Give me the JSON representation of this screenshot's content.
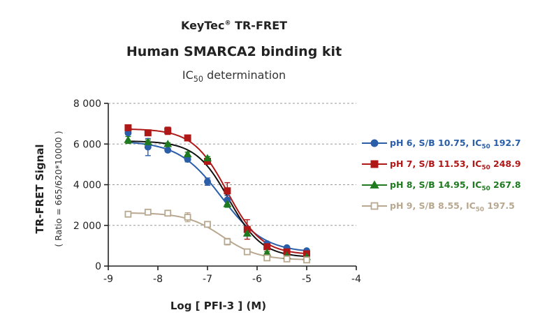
{
  "header": {
    "brand": "KeyTec",
    "brand_mark": "®",
    "brand_suffix": "TR-FRET",
    "title": "Human SMARCA2 binding kit",
    "subtitle_pre": "IC",
    "subtitle_sub": "50",
    "subtitle_post": " determination"
  },
  "chart_data": {
    "type": "scatter",
    "xlabel": "Log [ PFI-3 ]  (M)",
    "ylabel": "TR-FRET Signal",
    "ylabel_secondary": "( Ratio = 665/620*10000 )",
    "xlim": [
      -9,
      -4
    ],
    "ylim": [
      0,
      8000
    ],
    "x_ticks": [
      -9,
      -8,
      -7,
      -6,
      -5,
      -4
    ],
    "x_tick_labels": [
      "-9",
      "-8",
      "-7",
      "-6",
      "-5",
      "-4"
    ],
    "y_ticks": [
      0,
      2000,
      4000,
      6000,
      8000
    ],
    "y_tick_labels": [
      "0",
      "2 000",
      "4 000",
      "6 000",
      "8 000"
    ],
    "grid": "horizontal dashed",
    "legend_position": "right",
    "x": [
      -8.6,
      -8.2,
      -7.8,
      -7.4,
      -7.0,
      -6.6,
      -6.2,
      -5.8,
      -5.4,
      -5.0
    ],
    "series": [
      {
        "name": "pH 6, S/B 10.75, IC50 192.7",
        "label_pre": "pH 6, S/B 10.75, IC",
        "label_sub": "50",
        "label_post": " 192.7",
        "color": "#2a5ea8",
        "marker": "circle",
        "values": [
          6550,
          5850,
          5700,
          5250,
          4150,
          3250,
          1800,
          1100,
          900,
          750
        ],
        "errors": [
          100,
          420,
          90,
          130,
          180,
          220,
          150,
          80,
          60,
          50
        ],
        "fit": {
          "top": 6150,
          "bottom": 650,
          "log_ic50": -6.72,
          "hill": 1.0
        }
      },
      {
        "name": "pH 7, S/B 11.53, IC50 248.9",
        "label_pre": "pH 7, S/B 11.53, IC",
        "label_sub": "50",
        "label_post": " 248.9",
        "color": "#b01818",
        "marker": "square",
        "values": [
          6800,
          6550,
          6650,
          6300,
          5150,
          3700,
          1800,
          950,
          700,
          600
        ],
        "errors": [
          80,
          100,
          180,
          100,
          150,
          400,
          480,
          120,
          80,
          60
        ],
        "fit": {
          "top": 6750,
          "bottom": 550,
          "log_ic50": -6.6,
          "hill": 1.25
        }
      },
      {
        "name": "pH 8, S/B 14.95, IC50 267.8",
        "label_pre": "pH 8, S/B 14.95, IC",
        "label_sub": "50",
        "label_post": " 267.8",
        "color": "#1f7a1f",
        "marker": "triangle",
        "values": [
          6200,
          6100,
          6000,
          5500,
          5300,
          3050,
          1600,
          650,
          500,
          450
        ],
        "errors": [
          170,
          100,
          60,
          100,
          80,
          160,
          110,
          60,
          50,
          40
        ],
        "fit": {
          "top": 6150,
          "bottom": 420,
          "log_ic50": -6.57,
          "hill": 1.3
        }
      },
      {
        "name": "pH 9, S/B 8.55, IC50 197.5",
        "label_pre": "pH 9, S/B 8.55, IC",
        "label_sub": "50",
        "label_post": " 197.5",
        "color": "#b8a890",
        "marker": "square-open",
        "values": [
          2550,
          2650,
          2600,
          2400,
          2050,
          1200,
          700,
          400,
          350,
          300
        ],
        "errors": [
          90,
          60,
          80,
          220,
          60,
          160,
          80,
          50,
          40,
          40
        ],
        "fit": {
          "top": 2620,
          "bottom": 300,
          "log_ic50": -6.7,
          "hill": 1.2
        }
      }
    ]
  }
}
